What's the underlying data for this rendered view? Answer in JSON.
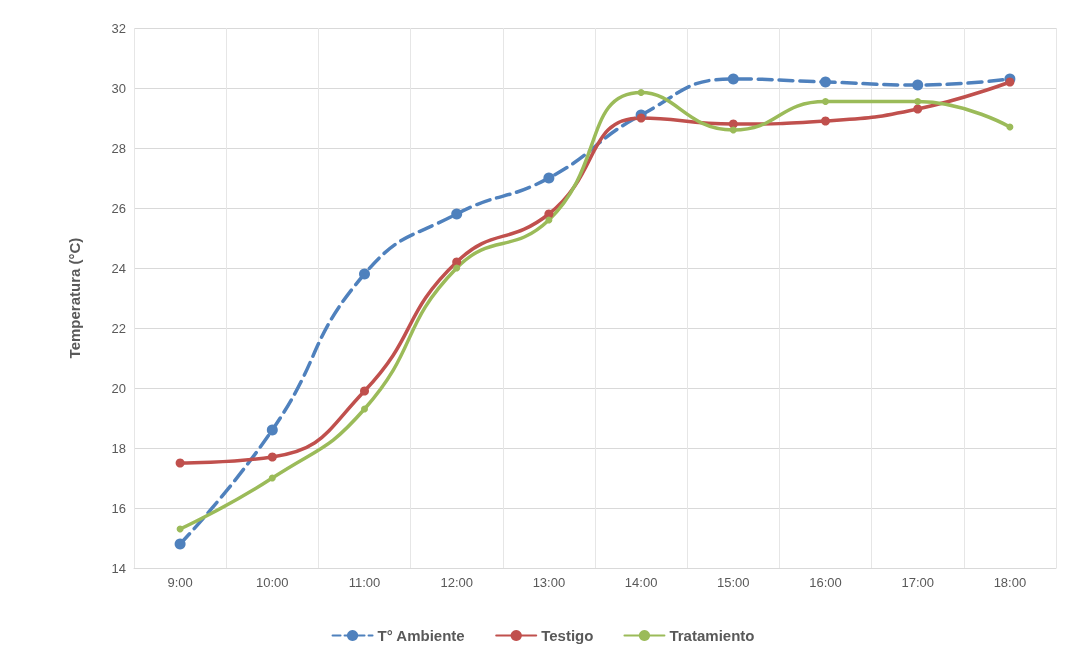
{
  "chart_data": {
    "type": "line",
    "ylabel": "Temperatura (°C)",
    "categories": [
      "9:00",
      "10:00",
      "11:00",
      "12:00",
      "13:00",
      "14:00",
      "15:00",
      "16:00",
      "17:00",
      "18:00"
    ],
    "series": [
      {
        "name": "T° Ambiente",
        "color": "#4f81bd",
        "line_style": "dashed",
        "values": [
          14.8,
          18.6,
          23.8,
          25.8,
          27.0,
          29.1,
          30.3,
          30.2,
          30.1,
          30.3
        ]
      },
      {
        "name": "Testigo",
        "color": "#c0504d",
        "line_style": "solid",
        "values": [
          17.5,
          17.7,
          19.9,
          24.2,
          25.8,
          29.0,
          28.8,
          28.9,
          29.3,
          30.2
        ]
      },
      {
        "name": "Tratamiento",
        "color": "#9bbb59",
        "line_style": "solid",
        "values": [
          15.3,
          17.0,
          19.3,
          24.0,
          25.6,
          29.85,
          28.6,
          29.55,
          29.55,
          28.7
        ]
      }
    ],
    "ylim": [
      14,
      32
    ],
    "yticks": [
      14,
      16,
      18,
      20,
      22,
      24,
      26,
      28,
      30,
      32
    ],
    "grid": true,
    "legend": "bottom",
    "marker": "circle"
  }
}
